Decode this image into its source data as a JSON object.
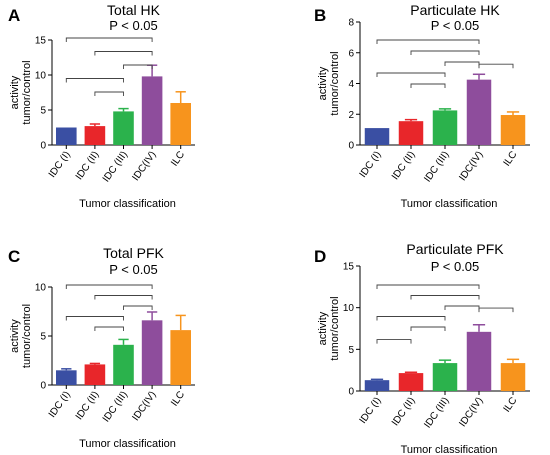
{
  "chart_data": [
    {
      "type": "bar",
      "letter": "A",
      "title": "Total HK",
      "significance": "P < 0.05",
      "categories": [
        "IDC (I)",
        "IDC (II)",
        "IDC (III)",
        "IDC(IV)",
        "ILC"
      ],
      "values": [
        2.5,
        2.7,
        4.8,
        9.8,
        6.0
      ],
      "errors": [
        0.0,
        0.3,
        0.4,
        1.6,
        1.6
      ],
      "colors": [
        "#3a4fa3",
        "#e8262a",
        "#2bb24c",
        "#8e4d9c",
        "#f7941d"
      ],
      "ylabel": "activity\ntumor/control",
      "xlabel": "Tumor classification",
      "ylim": [
        0,
        15
      ],
      "yticks": [
        0,
        5,
        10,
        15
      ],
      "brackets": [
        [
          0,
          3
        ],
        [
          1,
          3
        ],
        [
          2,
          3
        ],
        [
          0,
          2
        ],
        [
          1,
          2
        ]
      ]
    },
    {
      "type": "bar",
      "letter": "B",
      "title": "Particulate HK",
      "significance": "P < 0.05",
      "categories": [
        "IDC (I)",
        "IDC (II)",
        "IDC (III)",
        "IDC(IV)",
        "ILC"
      ],
      "values": [
        1.1,
        1.55,
        2.25,
        4.25,
        1.95
      ],
      "errors": [
        0.0,
        0.1,
        0.1,
        0.35,
        0.2
      ],
      "colors": [
        "#3a4fa3",
        "#e8262a",
        "#2bb24c",
        "#8e4d9c",
        "#f7941d"
      ],
      "ylabel": "activity\ntumor/control",
      "xlabel": "Tumor classification",
      "ylim": [
        0,
        8
      ],
      "yticks": [
        0,
        2,
        4,
        6,
        8
      ],
      "brackets": [
        [
          0,
          3
        ],
        [
          1,
          3
        ],
        [
          2,
          3
        ],
        [
          0,
          2
        ],
        [
          1,
          2
        ],
        [
          3,
          4
        ]
      ]
    },
    {
      "type": "bar",
      "letter": "C",
      "title": "Total PFK",
      "significance": "P < 0.05",
      "categories": [
        "IDC (I)",
        "IDC (II)",
        "IDC (III)",
        "IDC(IV)",
        "ILC"
      ],
      "values": [
        1.5,
        2.1,
        4.1,
        6.6,
        5.6
      ],
      "errors": [
        0.15,
        0.1,
        0.55,
        0.85,
        1.5
      ],
      "colors": [
        "#3a4fa3",
        "#e8262a",
        "#2bb24c",
        "#8e4d9c",
        "#f7941d"
      ],
      "ylabel": "activity\ntumor/control",
      "xlabel": "Tumor classification",
      "ylim": [
        0,
        10
      ],
      "yticks": [
        0,
        5,
        10
      ],
      "brackets": [
        [
          0,
          3
        ],
        [
          1,
          3
        ],
        [
          2,
          3
        ],
        [
          0,
          2
        ],
        [
          1,
          2
        ]
      ]
    },
    {
      "type": "bar",
      "letter": "D",
      "title": "Particulate PFK",
      "significance": "P < 0.05",
      "categories": [
        "IDC (I)",
        "IDC (II)",
        "IDC (III)",
        "IDC(IV)",
        "ILC"
      ],
      "values": [
        1.3,
        2.15,
        3.35,
        7.1,
        3.35
      ],
      "errors": [
        0.1,
        0.1,
        0.35,
        0.85,
        0.45
      ],
      "colors": [
        "#3a4fa3",
        "#e8262a",
        "#2bb24c",
        "#8e4d9c",
        "#f7941d"
      ],
      "ylabel": "activity\ntumor/control",
      "xlabel": "Tumor classification",
      "ylim": [
        0,
        15
      ],
      "yticks": [
        0,
        5,
        10,
        15
      ],
      "brackets": [
        [
          0,
          3
        ],
        [
          1,
          3
        ],
        [
          2,
          3
        ],
        [
          0,
          2
        ],
        [
          1,
          2
        ],
        [
          0,
          1
        ],
        [
          3,
          4
        ]
      ]
    }
  ]
}
